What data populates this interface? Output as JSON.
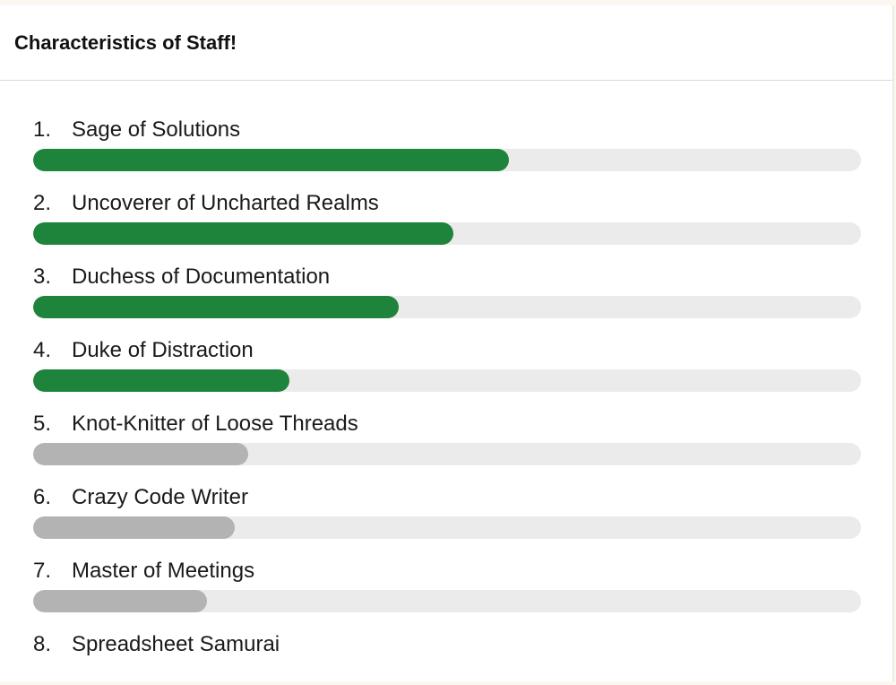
{
  "header": {
    "title": "Characteristics of Staff!"
  },
  "colors": {
    "fill_active": "#1e833b",
    "fill_muted": "#b3b3b3",
    "track": "#ebebeb"
  },
  "items": [
    {
      "number": "1.",
      "label": "Sage of Solutions",
      "progress": 0.575,
      "tone": "active"
    },
    {
      "number": "2.",
      "label": "Uncoverer of Uncharted Realms",
      "progress": 0.508,
      "tone": "active"
    },
    {
      "number": "3.",
      "label": "Duchess of Documentation",
      "progress": 0.442,
      "tone": "active"
    },
    {
      "number": "4.",
      "label": "Duke of Distraction",
      "progress": 0.31,
      "tone": "active"
    },
    {
      "number": "5.",
      "label": "Knot-Knitter of Loose Threads",
      "progress": 0.26,
      "tone": "muted"
    },
    {
      "number": "6.",
      "label": "Crazy Code Writer",
      "progress": 0.244,
      "tone": "muted"
    },
    {
      "number": "7.",
      "label": "Master of Meetings",
      "progress": 0.21,
      "tone": "muted"
    },
    {
      "number": "8.",
      "label": "Spreadsheet Samurai"
    }
  ]
}
